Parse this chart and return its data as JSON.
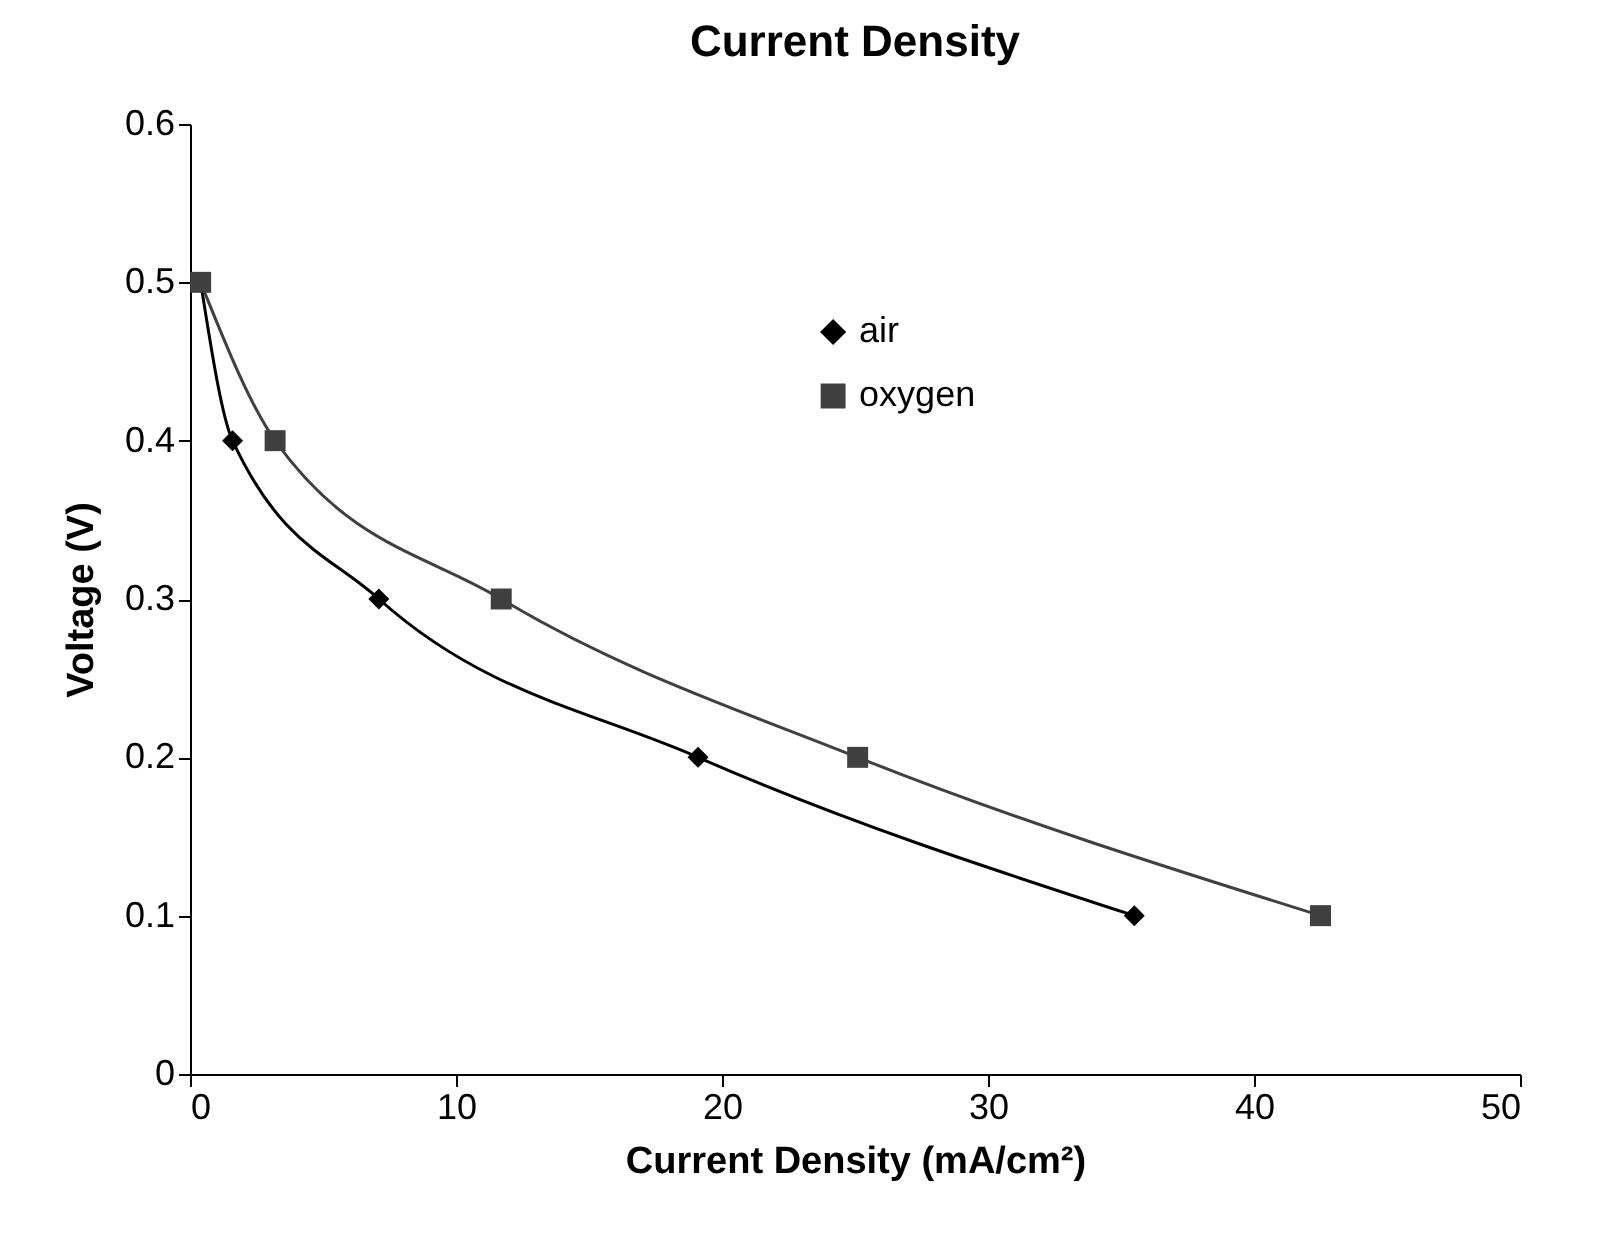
{
  "chart_data": {
    "type": "line",
    "title": "Current Density",
    "xlabel": "Current Density (mA/cm²)",
    "ylabel": "Voltage (V)",
    "xlim": [
      0,
      50
    ],
    "xticks": [
      0,
      10,
      20,
      30,
      40,
      50
    ],
    "ylim": [
      0,
      0.6
    ],
    "yticks": [
      0,
      0.1,
      0.2,
      0.3,
      0.4,
      0.5,
      0.6
    ],
    "grid": false,
    "legend": "right",
    "line_style": "solid",
    "series": [
      {
        "name": "air",
        "color": "#000000",
        "marker": "diamond",
        "x": [
          0.4,
          1.6,
          7.1,
          19.1,
          35.5
        ],
        "values": [
          0.5,
          0.4,
          0.3,
          0.2,
          0.1
        ]
      },
      {
        "name": "oxygen",
        "color": "#404040",
        "marker": "square",
        "x": [
          0.4,
          3.2,
          11.7,
          25.1,
          42.5
        ],
        "values": [
          0.5,
          0.4,
          0.3,
          0.2,
          0.1
        ]
      }
    ]
  }
}
